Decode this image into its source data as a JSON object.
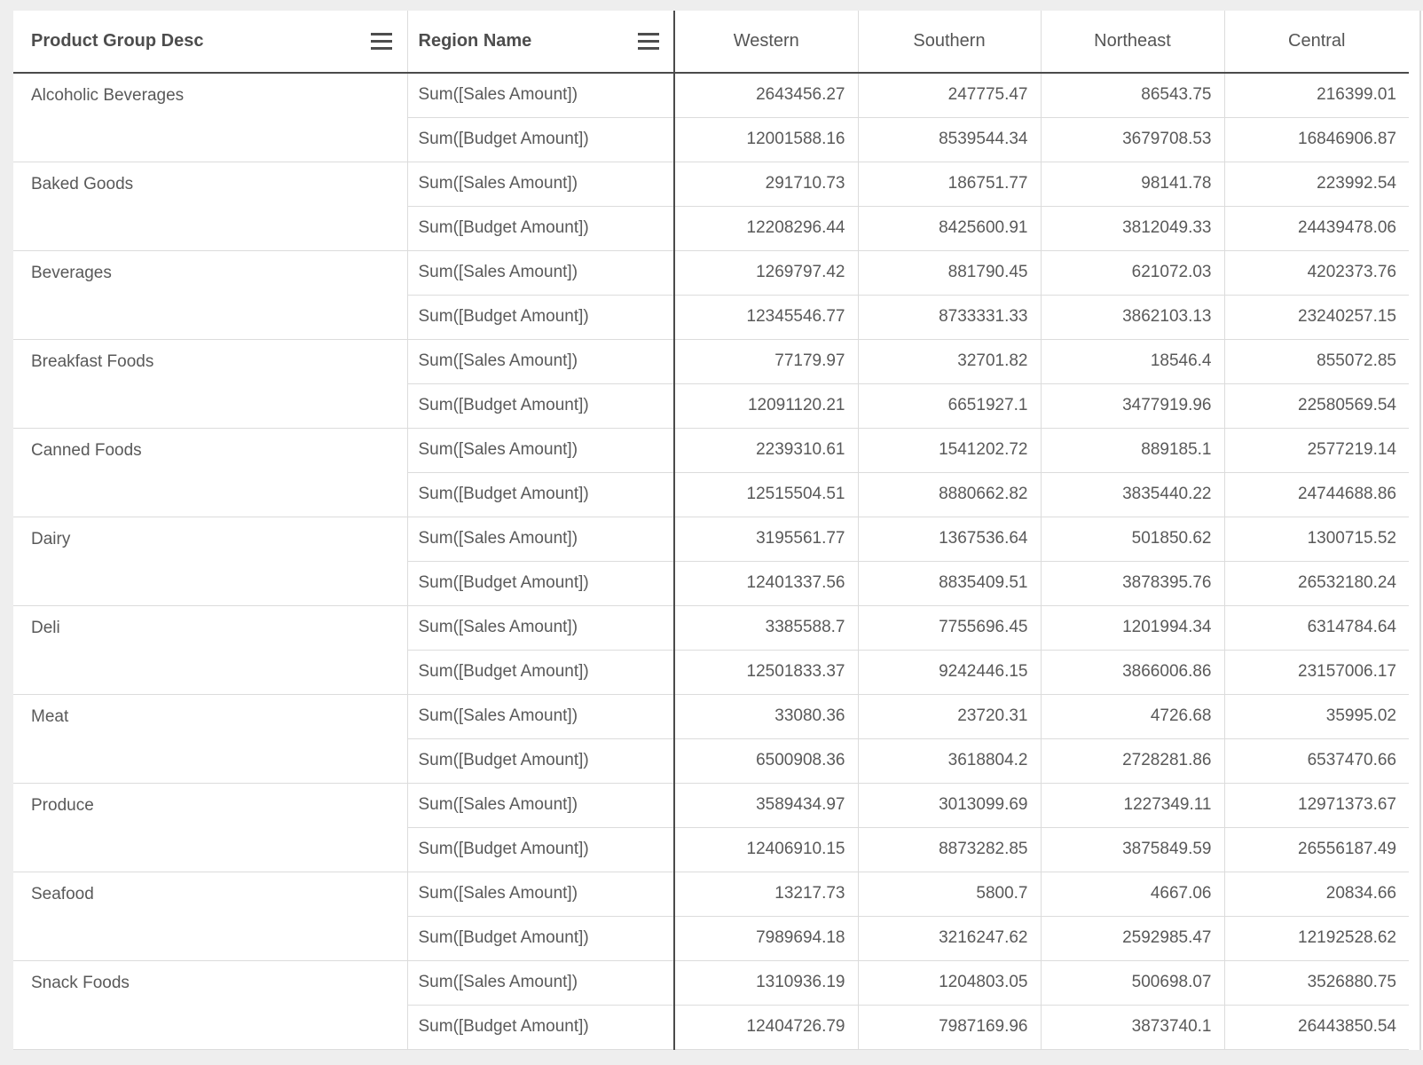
{
  "table": {
    "headers": {
      "product": "Product Group Desc",
      "region": "Region Name"
    },
    "region_columns": [
      "Western",
      "Southern",
      "Northeast",
      "Central"
    ],
    "measure_labels": [
      "Sum([Sales Amount])",
      "Sum([Budget Amount])"
    ],
    "groups": [
      {
        "name": "Alcoholic Beverages",
        "sales": [
          "2643456.27",
          "247775.47",
          "86543.75",
          "216399.01"
        ],
        "budget": [
          "12001588.16",
          "8539544.34",
          "3679708.53",
          "16846906.87"
        ]
      },
      {
        "name": "Baked Goods",
        "sales": [
          "291710.73",
          "186751.77",
          "98141.78",
          "223992.54"
        ],
        "budget": [
          "12208296.44",
          "8425600.91",
          "3812049.33",
          "24439478.06"
        ]
      },
      {
        "name": "Beverages",
        "sales": [
          "1269797.42",
          "881790.45",
          "621072.03",
          "4202373.76"
        ],
        "budget": [
          "12345546.77",
          "8733331.33",
          "3862103.13",
          "23240257.15"
        ]
      },
      {
        "name": "Breakfast Foods",
        "sales": [
          "77179.97",
          "32701.82",
          "18546.4",
          "855072.85"
        ],
        "budget": [
          "12091120.21",
          "6651927.1",
          "3477919.96",
          "22580569.54"
        ]
      },
      {
        "name": "Canned Foods",
        "sales": [
          "2239310.61",
          "1541202.72",
          "889185.1",
          "2577219.14"
        ],
        "budget": [
          "12515504.51",
          "8880662.82",
          "3835440.22",
          "24744688.86"
        ]
      },
      {
        "name": "Dairy",
        "sales": [
          "3195561.77",
          "1367536.64",
          "501850.62",
          "1300715.52"
        ],
        "budget": [
          "12401337.56",
          "8835409.51",
          "3878395.76",
          "26532180.24"
        ]
      },
      {
        "name": "Deli",
        "sales": [
          "3385588.7",
          "7755696.45",
          "1201994.34",
          "6314784.64"
        ],
        "budget": [
          "12501833.37",
          "9242446.15",
          "3866006.86",
          "23157006.17"
        ]
      },
      {
        "name": "Meat",
        "sales": [
          "33080.36",
          "23720.31",
          "4726.68",
          "35995.02"
        ],
        "budget": [
          "6500908.36",
          "3618804.2",
          "2728281.86",
          "6537470.66"
        ]
      },
      {
        "name": "Produce",
        "sales": [
          "3589434.97",
          "3013099.69",
          "1227349.11",
          "12971373.67"
        ],
        "budget": [
          "12406910.15",
          "8873282.85",
          "3875849.59",
          "26556187.49"
        ]
      },
      {
        "name": "Seafood",
        "sales": [
          "13217.73",
          "5800.7",
          "4667.06",
          "20834.66"
        ],
        "budget": [
          "7989694.18",
          "3216247.62",
          "2592985.47",
          "12192528.62"
        ]
      },
      {
        "name": "Snack Foods",
        "sales": [
          "1310936.19",
          "1204803.05",
          "500698.07",
          "3526880.75"
        ],
        "budget": [
          "12404726.79",
          "7987169.96",
          "3873740.1",
          "26443850.54"
        ]
      }
    ]
  },
  "colors": {
    "page_background": "#eeeeee",
    "panel_background": "#ffffff",
    "header_text": "#4d4d4d",
    "body_text": "#595959",
    "dark_border": "#4b4b4b",
    "light_border": "#dcdcdc"
  }
}
